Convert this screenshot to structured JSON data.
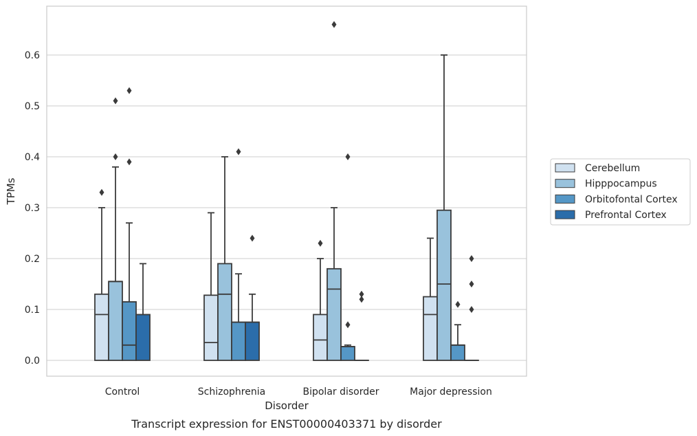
{
  "caption": "Transcript expression for ENST00000403371 by disorder",
  "chart_data": {
    "type": "box",
    "xlabel": "Disorder",
    "ylabel": "TPMs",
    "ylim": [
      -0.033,
      0.695
    ],
    "yticks": [
      0.0,
      0.1,
      0.2,
      0.3,
      0.4,
      0.5,
      0.6
    ],
    "ytick_labels": [
      "0.0",
      "0.1",
      "0.2",
      "0.3",
      "0.4",
      "0.5",
      "0.6"
    ],
    "grid": "horizontal",
    "legend_position": "right",
    "categories": [
      "Control",
      "Schizophrenia",
      "Bipolar disorder",
      "Major depression"
    ],
    "series": [
      {
        "name": "Cerebellum",
        "color": "#d0e1f0",
        "boxes": [
          {
            "q1": 0.0,
            "median": 0.09,
            "q3": 0.13,
            "whisker_low": 0.0,
            "whisker_high": 0.3,
            "outliers": [
              0.33
            ]
          },
          {
            "q1": 0.0,
            "median": 0.035,
            "q3": 0.128,
            "whisker_low": 0.0,
            "whisker_high": 0.29,
            "outliers": []
          },
          {
            "q1": 0.0,
            "median": 0.04,
            "q3": 0.09,
            "whisker_low": 0.0,
            "whisker_high": 0.2,
            "outliers": [
              0.23
            ]
          },
          {
            "q1": 0.0,
            "median": 0.09,
            "q3": 0.125,
            "whisker_low": 0.0,
            "whisker_high": 0.24,
            "outliers": []
          }
        ]
      },
      {
        "name": "Hipppocampus",
        "color": "#99c2dc",
        "boxes": [
          {
            "q1": 0.0,
            "median": 0.155,
            "q3": 0.155,
            "whisker_low": 0.0,
            "whisker_high": 0.38,
            "outliers": [
              0.4,
              0.51
            ]
          },
          {
            "q1": 0.0,
            "median": 0.13,
            "q3": 0.19,
            "whisker_low": 0.0,
            "whisker_high": 0.4,
            "outliers": []
          },
          {
            "q1": 0.0,
            "median": 0.14,
            "q3": 0.18,
            "whisker_low": 0.0,
            "whisker_high": 0.3,
            "outliers": [
              0.66
            ]
          },
          {
            "q1": 0.0,
            "median": 0.15,
            "q3": 0.295,
            "whisker_low": 0.0,
            "whisker_high": 0.6,
            "outliers": []
          }
        ]
      },
      {
        "name": "Orbitofontal Cortex",
        "color": "#5597c6",
        "boxes": [
          {
            "q1": 0.0,
            "median": 0.03,
            "q3": 0.115,
            "whisker_low": 0.0,
            "whisker_high": 0.27,
            "outliers": [
              0.39,
              0.53
            ]
          },
          {
            "q1": 0.0,
            "median": 0.075,
            "q3": 0.075,
            "whisker_low": 0.0,
            "whisker_high": 0.17,
            "outliers": [
              0.41
            ]
          },
          {
            "q1": 0.0,
            "median": 0.027,
            "q3": 0.027,
            "whisker_low": 0.0,
            "whisker_high": 0.03,
            "outliers": [
              0.07,
              0.4
            ]
          },
          {
            "q1": 0.0,
            "median": 0.03,
            "q3": 0.03,
            "whisker_low": 0.0,
            "whisker_high": 0.07,
            "outliers": [
              0.11
            ]
          }
        ]
      },
      {
        "name": "Prefrontal Cortex",
        "color": "#2b6daa",
        "boxes": [
          {
            "q1": 0.0,
            "median": 0.09,
            "q3": 0.09,
            "whisker_low": 0.0,
            "whisker_high": 0.19,
            "outliers": []
          },
          {
            "q1": 0.0,
            "median": 0.075,
            "q3": 0.075,
            "whisker_low": 0.0,
            "whisker_high": 0.13,
            "outliers": [
              0.24
            ]
          },
          {
            "q1": 0.0,
            "median": 0.0,
            "q3": 0.0,
            "whisker_low": 0.0,
            "whisker_high": 0.0,
            "outliers": [
              0.12,
              0.13
            ]
          },
          {
            "q1": 0.0,
            "median": 0.0,
            "q3": 0.0,
            "whisker_low": 0.0,
            "whisker_high": 0.0,
            "outliers": [
              0.1,
              0.15,
              0.2
            ]
          }
        ]
      }
    ]
  }
}
